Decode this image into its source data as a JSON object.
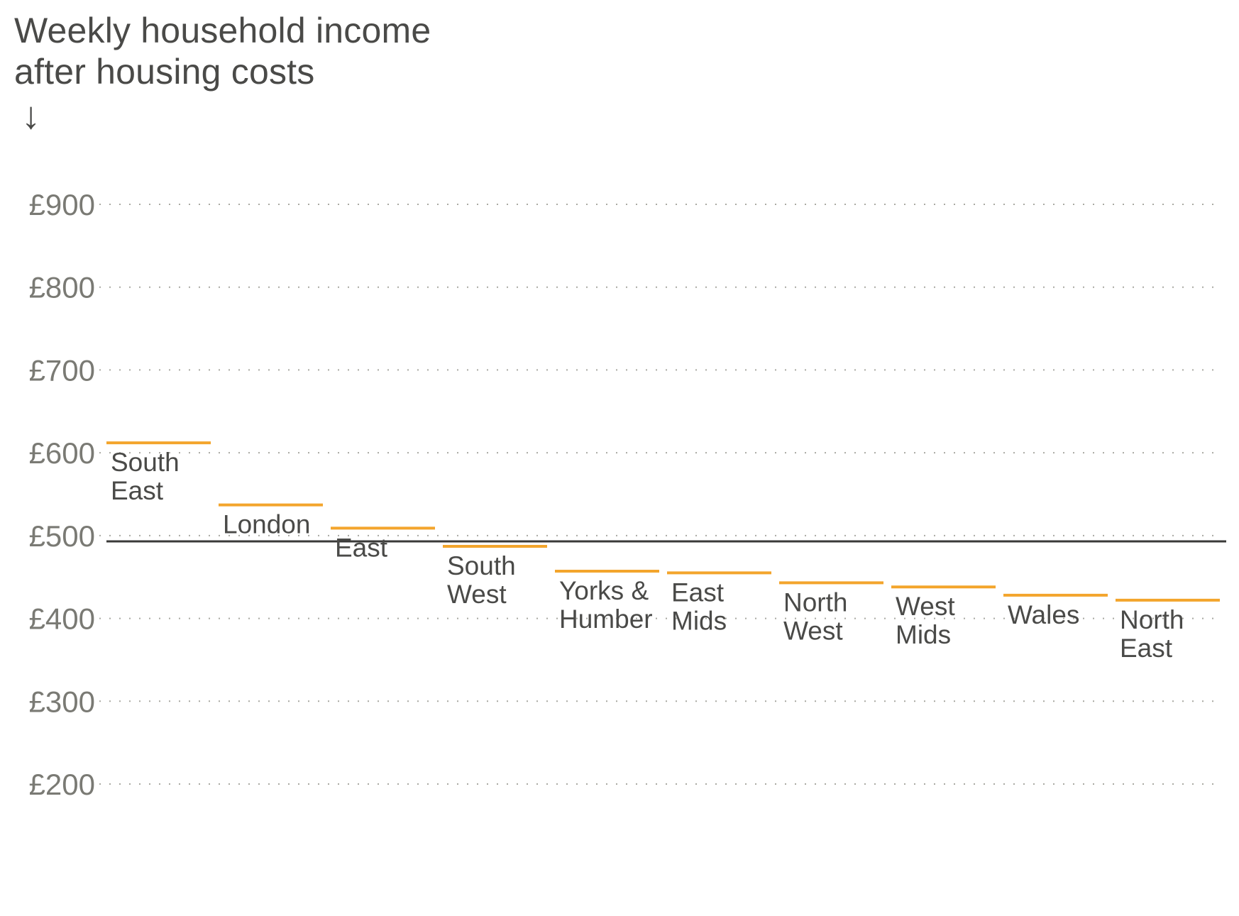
{
  "title": [
    "Weekly household income",
    "after housing costs"
  ],
  "title_arrow": "↓",
  "colors": {
    "marker": "#f3a52c",
    "average_line": "#3a3a38",
    "grid": "#a9a9a2",
    "tick_text": "#7a7a74",
    "label_text": "#4a4a48"
  },
  "chart_data": {
    "type": "bar",
    "marker_style": "horizontal-line",
    "title": "Weekly household income after housing costs",
    "ylim": [
      200,
      900
    ],
    "yticks": [
      900,
      800,
      700,
      600,
      500,
      400,
      300,
      200
    ],
    "ytick_labels": [
      "£900",
      "£800",
      "£700",
      "£600",
      "£500",
      "£400",
      "£300",
      "£200"
    ],
    "grid": true,
    "categories": [
      [
        "South",
        "East"
      ],
      [
        "London"
      ],
      [
        "East"
      ],
      [
        "South",
        "West"
      ],
      [
        "Yorks &",
        "Humber"
      ],
      [
        "East",
        "Mids"
      ],
      [
        "North",
        "West"
      ],
      [
        "West",
        "Mids"
      ],
      [
        "Wales"
      ],
      [
        "North",
        "East"
      ]
    ],
    "values": [
      612,
      537,
      509,
      487,
      457,
      455,
      443,
      438,
      428,
      422
    ],
    "reference_line": {
      "value": 493
    }
  }
}
